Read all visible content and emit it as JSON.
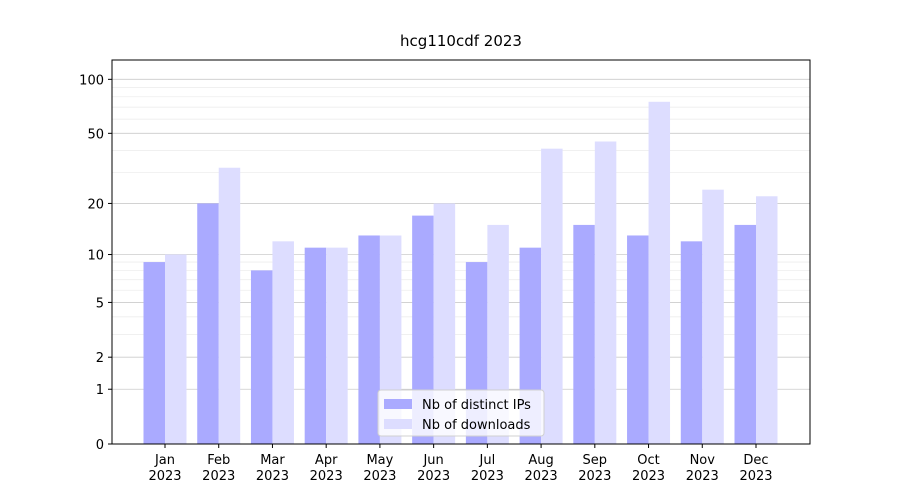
{
  "chart_data": {
    "type": "bar",
    "title": "hcg110cdf 2023",
    "categories": [
      "Jan\n2023",
      "Feb\n2023",
      "Mar\n2023",
      "Apr\n2023",
      "May\n2023",
      "Jun\n2023",
      "Jul\n2023",
      "Aug\n2023",
      "Sep\n2023",
      "Oct\n2023",
      "Nov\n2023",
      "Dec\n2023"
    ],
    "series": [
      {
        "name": "Nb of distinct IPs",
        "color": "#aaaaff",
        "values": [
          9,
          20,
          8,
          11,
          13,
          17,
          9,
          11,
          15,
          13,
          12,
          15
        ]
      },
      {
        "name": "Nb of downloads",
        "color": "#ddddff",
        "values": [
          10,
          32,
          12,
          11,
          13,
          20,
          15,
          41,
          45,
          75,
          24,
          22
        ]
      }
    ],
    "yscale": "log1p",
    "ylim": [
      0,
      128
    ],
    "yticks": [
      0,
      1,
      2,
      5,
      10,
      20,
      50,
      100
    ],
    "yminorticks": [
      3,
      4,
      6,
      7,
      8,
      9,
      30,
      40,
      60,
      70,
      80,
      90
    ],
    "grid": true,
    "legend": "lower center"
  }
}
